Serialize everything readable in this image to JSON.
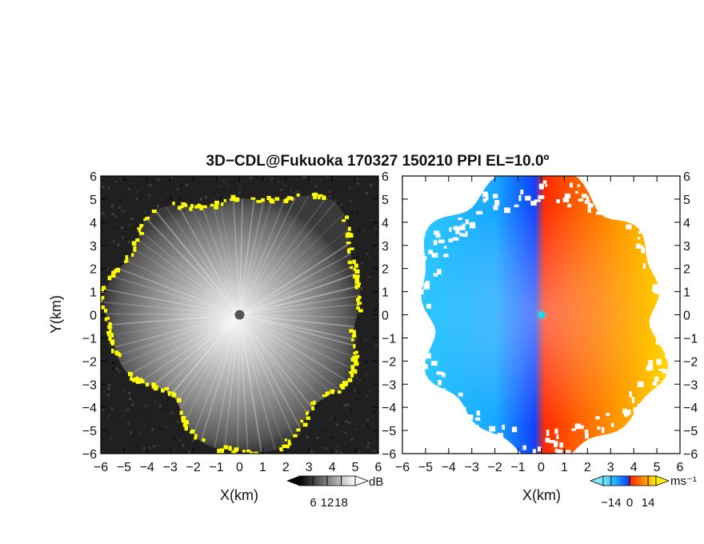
{
  "chart_data": [
    {
      "type": "heatmap",
      "panel": "reflectivity",
      "title": "3D−CDL@Fukuoka 170327 150210 PPI EL=10.0º",
      "xlabel": "X(km)",
      "ylabel": "Y(km)",
      "xlim": [
        -6,
        6
      ],
      "ylim": [
        -6,
        6
      ],
      "xticks": [
        "−6",
        "−5",
        "−4",
        "−3",
        "−2",
        "−1",
        "0",
        "1",
        "2",
        "3",
        "4",
        "5",
        "6"
      ],
      "yticks": [
        "6",
        "5",
        "4",
        "3",
        "2",
        "1",
        "0",
        "−1",
        "−2",
        "−3",
        "−4",
        "−5",
        "−6"
      ],
      "colormap": "grayscale",
      "colorbar": {
        "unit": "dB",
        "ticks": [
          "6",
          "12",
          "18"
        ],
        "range": [
          0,
          24
        ]
      },
      "edge_color": "#ffff00",
      "center_marker_color": "#555555",
      "data_radius_km": 5.8
    },
    {
      "type": "heatmap",
      "panel": "doppler_velocity",
      "xlabel": "X(km)",
      "xlim": [
        -6,
        6
      ],
      "ylim": [
        -6,
        6
      ],
      "xticks": [
        "−6",
        "−5",
        "−4",
        "−3",
        "−2",
        "−1",
        "0",
        "1",
        "2",
        "3",
        "4",
        "5",
        "6"
      ],
      "yticks": [
        "6",
        "5",
        "4",
        "3",
        "2",
        "1",
        "0",
        "−1",
        "−2",
        "−3",
        "−4",
        "−5",
        "−6"
      ],
      "colormap": "cyan-blue-red-orange-yellow",
      "colorbar": {
        "unit": "ms⁻¹",
        "ticks": [
          "−14",
          "0",
          "14"
        ],
        "range": [
          -20,
          20
        ]
      },
      "colors": {
        "cyan": "#2ec8ff",
        "blue": "#1040ff",
        "red": "#ff2a00",
        "orange": "#ff8800",
        "yellow": "#ffee00"
      },
      "center_marker_color": "#22d8e8"
    }
  ]
}
